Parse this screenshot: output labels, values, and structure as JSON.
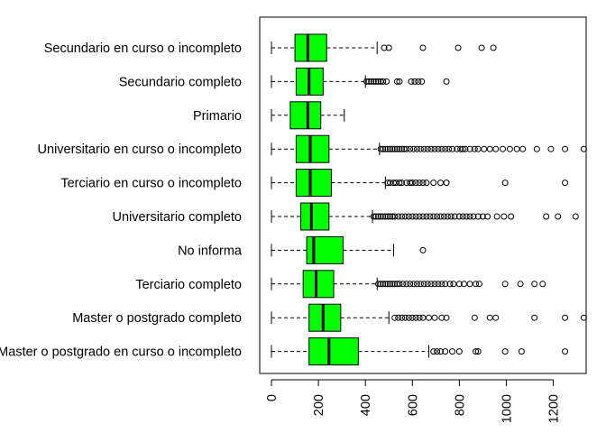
{
  "colors": {
    "box_fill": "#00ff00",
    "ink": "#000000",
    "background": "#ffffff"
  },
  "chart_data": {
    "type": "boxplot",
    "orientation": "horizontal",
    "title": "",
    "xlabel": "",
    "ylabel": "",
    "xlim": [
      -50,
      1340
    ],
    "x_ticks": [
      0,
      200,
      400,
      600,
      800,
      1000,
      1200
    ],
    "x_tick_labels": [
      "0",
      "200",
      "400",
      "600",
      "800",
      "1000",
      "1200"
    ],
    "grid": false,
    "categories": [
      "Secundario en curso o incompleto",
      "Secundario completo",
      "Primario",
      "Universitario en curso o incompleto",
      "Terciario en curso o incompleto",
      "Universitario completo",
      "No informa",
      "Terciario completo",
      "Master o postgrado completo",
      "Master o postgrado en curso o incompleto"
    ],
    "boxes": [
      {
        "whisker_low": 0,
        "q1": 100,
        "median": 155,
        "q3": 235,
        "whisker_high": 450,
        "outliers": [
          480,
          500,
          645,
          795,
          895,
          945
        ]
      },
      {
        "whisker_low": 0,
        "q1": 105,
        "median": 160,
        "q3": 220,
        "whisker_high": 400,
        "outliers": [
          405,
          415,
          425,
          435,
          445,
          455,
          465,
          475,
          490,
          535,
          545,
          595,
          610,
          625,
          640,
          745
        ]
      },
      {
        "whisker_low": 0,
        "q1": 80,
        "median": 155,
        "q3": 210,
        "whisker_high": 310,
        "outliers": []
      },
      {
        "whisker_low": 0,
        "q1": 105,
        "median": 165,
        "q3": 245,
        "whisker_high": 460,
        "outliers": [
          465,
          475,
          485,
          495,
          505,
          515,
          525,
          535,
          545,
          555,
          565,
          575,
          590,
          605,
          620,
          635,
          650,
          665,
          680,
          695,
          710,
          725,
          740,
          755,
          770,
          790,
          805,
          815,
          825,
          845,
          865,
          880,
          905,
          930,
          955,
          985,
          1015,
          1045,
          1070,
          1130,
          1190,
          1250,
          1330
        ]
      },
      {
        "whisker_low": 0,
        "q1": 105,
        "median": 165,
        "q3": 255,
        "whisker_high": 485,
        "outliers": [
          495,
          505,
          520,
          530,
          545,
          555,
          575,
          590,
          600,
          615,
          630,
          645,
          660,
          690,
          720,
          745,
          995,
          1250
        ]
      },
      {
        "whisker_low": 0,
        "q1": 125,
        "median": 170,
        "q3": 245,
        "whisker_high": 430,
        "outliers": [
          435,
          445,
          455,
          465,
          475,
          485,
          495,
          505,
          515,
          525,
          540,
          555,
          570,
          585,
          600,
          615,
          630,
          645,
          660,
          675,
          690,
          705,
          720,
          735,
          750,
          765,
          780,
          800,
          815,
          830,
          845,
          860,
          880,
          900,
          920,
          960,
          990,
          1020,
          1170,
          1220,
          1295
        ]
      },
      {
        "whisker_low": 0,
        "q1": 150,
        "median": 180,
        "q3": 305,
        "whisker_high": 520,
        "outliers": [
          645
        ]
      },
      {
        "whisker_low": 0,
        "q1": 135,
        "median": 190,
        "q3": 265,
        "whisker_high": 450,
        "outliers": [
          455,
          465,
          475,
          485,
          495,
          505,
          515,
          525,
          535,
          545,
          560,
          575,
          590,
          605,
          620,
          635,
          650,
          665,
          680,
          695,
          710,
          725,
          740,
          760,
          775,
          800,
          820,
          845,
          870,
          885,
          995,
          1060,
          1120,
          1155
        ]
      },
      {
        "whisker_low": 0,
        "q1": 160,
        "median": 220,
        "q3": 295,
        "whisker_high": 500,
        "outliers": [
          525,
          540,
          555,
          570,
          585,
          600,
          615,
          630,
          645,
          670,
          695,
          725,
          745,
          865,
          930,
          955,
          1120,
          1250,
          1330
        ]
      },
      {
        "whisker_low": 0,
        "q1": 160,
        "median": 245,
        "q3": 370,
        "whisker_high": 670,
        "outliers": [
          690,
          705,
          720,
          740,
          770,
          800,
          870,
          880,
          995,
          1065,
          1250
        ]
      }
    ]
  }
}
